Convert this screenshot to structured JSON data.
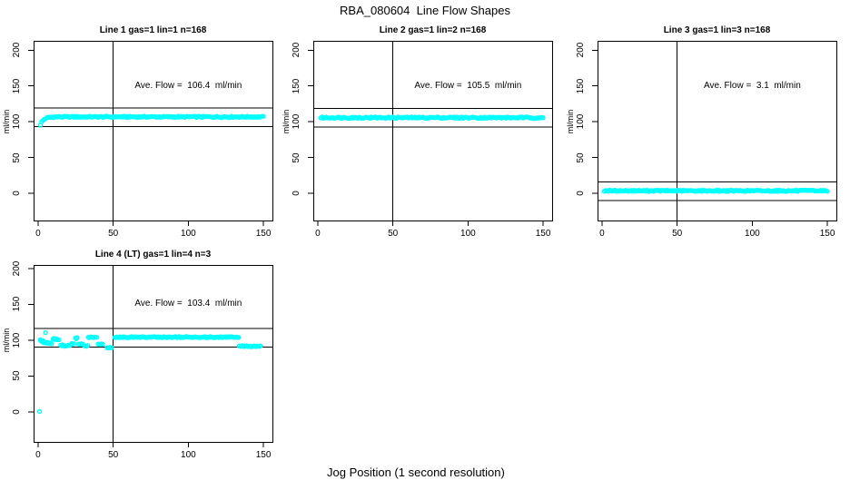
{
  "figure": {
    "title": "RBA_080604  Line Flow Shapes",
    "xlabel": "Jog Position (1 second resolution)",
    "point_color": "#00FFFF",
    "axis_color": "#000000",
    "background": "#FFFFFF"
  },
  "chart_data": [
    {
      "type": "scatter",
      "title": "Line 1 gas=1 lin=1 n=168",
      "annotation": "Ave. Flow =  106.4  ml/min",
      "ave_flow_ml_min": 106.4,
      "n": 168,
      "ylabel": "ml/min",
      "xticks": [
        0,
        50,
        100,
        150
      ],
      "yticks": [
        0,
        50,
        100,
        150,
        200
      ],
      "xlim": [
        -3,
        156
      ],
      "ylim": [
        -38,
        213
      ],
      "vline_x": 50,
      "hlines": [
        119.4,
        93.4
      ],
      "series": [
        {
          "kind": "rise_flat",
          "n": 168,
          "x_start": 1.5,
          "x_end": 150,
          "y_start": 95.5,
          "y_flat": 106.8,
          "tau": 2.2,
          "jitter": 0.9
        }
      ]
    },
    {
      "type": "scatter",
      "title": "Line 2 gas=1 lin=2 n=168",
      "annotation": "Ave. Flow =  105.5  ml/min",
      "ave_flow_ml_min": 105.5,
      "n": 168,
      "ylabel": "ml/min",
      "xticks": [
        0,
        50,
        100,
        150
      ],
      "yticks": [
        0,
        50,
        100,
        150,
        200
      ],
      "xlim": [
        -3,
        156
      ],
      "ylim": [
        -38,
        213
      ],
      "vline_x": 50,
      "hlines": [
        118.5,
        92.5
      ],
      "series": [
        {
          "kind": "flat",
          "n": 168,
          "x_start": 2,
          "x_end": 150,
          "y": 105.7,
          "jitter": 1.0
        }
      ]
    },
    {
      "type": "scatter",
      "title": "Line 3 gas=1 lin=3 n=168",
      "annotation": "Ave. Flow =  3.1  ml/min",
      "ave_flow_ml_min": 3.1,
      "n": 168,
      "ylabel": "ml/min",
      "xticks": [
        0,
        50,
        100,
        150
      ],
      "yticks": [
        0,
        50,
        100,
        150,
        200
      ],
      "xlim": [
        -3,
        156
      ],
      "ylim": [
        -38,
        213
      ],
      "vline_x": 50,
      "hlines": [
        16.1,
        -9.9
      ],
      "series": [
        {
          "kind": "flat",
          "n": 168,
          "x_start": 1.5,
          "x_end": 150,
          "y": 3.5,
          "jitter": 0.9
        }
      ]
    },
    {
      "type": "scatter",
      "title": "Line 4 (LT) gas=1 lin=4 n=3",
      "annotation": "Ave. Flow =  103.4  ml/min",
      "ave_flow_ml_min": 103.4,
      "n": 3,
      "ylabel": "ml/min",
      "xticks": [
        0,
        50,
        100,
        150
      ],
      "yticks": [
        0,
        50,
        100,
        150,
        200
      ],
      "xlim": [
        -3,
        156
      ],
      "ylim": [
        -42,
        205
      ],
      "vline_x": 50,
      "hlines": [
        116.4,
        90.4
      ],
      "series": [
        {
          "kind": "points",
          "points": [
            [
              1,
              0.5
            ],
            [
              5,
              110.5
            ],
            [
              1.5,
              100.5
            ],
            [
              2,
              99
            ],
            [
              2.5,
              98
            ],
            [
              3,
              99.5
            ],
            [
              3.5,
              97
            ],
            [
              4,
              98
            ],
            [
              4.5,
              96.5
            ],
            [
              5.5,
              96
            ],
            [
              6,
              97
            ],
            [
              7,
              95.5
            ],
            [
              8,
              96
            ],
            [
              9,
              95
            ],
            [
              10,
              101.5
            ],
            [
              10.5,
              102.5
            ],
            [
              11,
              101
            ],
            [
              12,
              102
            ],
            [
              12.5,
              100.5
            ],
            [
              13,
              101
            ],
            [
              14,
              100.5
            ],
            [
              15,
              93
            ],
            [
              16,
              92
            ],
            [
              16.5,
              93.5
            ],
            [
              17,
              92.5
            ],
            [
              18,
              91.5
            ],
            [
              19,
              92
            ],
            [
              20,
              93
            ],
            [
              21,
              92.5
            ],
            [
              22.5,
              95.5
            ],
            [
              23,
              94.5
            ],
            [
              24,
              95
            ],
            [
              25,
              103
            ],
            [
              25.5,
              102
            ],
            [
              26,
              103.5
            ],
            [
              27,
              94.5
            ],
            [
              28,
              94
            ],
            [
              29,
              95
            ],
            [
              30,
              94
            ],
            [
              31,
              92
            ],
            [
              32,
              91.5
            ],
            [
              33,
              92.5
            ],
            [
              33.5,
              104
            ],
            [
              34,
              103.5
            ],
            [
              35,
              104.5
            ],
            [
              36,
              104
            ],
            [
              37,
              103.5
            ],
            [
              38,
              104.2
            ],
            [
              39,
              104
            ],
            [
              40,
              94.5
            ],
            [
              41,
              94
            ],
            [
              42,
              94.8
            ],
            [
              43,
              94.3
            ],
            [
              46,
              89.5
            ],
            [
              47,
              89
            ],
            [
              48,
              90
            ],
            [
              49,
              89.3
            ],
            [
              134,
              92
            ],
            [
              135,
              91.3
            ],
            [
              136,
              92.4
            ],
            [
              137,
              91
            ],
            [
              137.5,
              92
            ],
            [
              138,
              91.5
            ],
            [
              139,
              92.2
            ],
            [
              140,
              91
            ],
            [
              141,
              91.8
            ],
            [
              142,
              90.8
            ],
            [
              143,
              91.5
            ],
            [
              144,
              92
            ],
            [
              145,
              91
            ],
            [
              146,
              91.7
            ],
            [
              147,
              91.2
            ],
            [
              148,
              92
            ]
          ]
        },
        {
          "kind": "flat",
          "n": 115,
          "x_start": 51,
          "x_end": 133.5,
          "y": 104.2,
          "jitter": 0.7
        }
      ]
    }
  ]
}
